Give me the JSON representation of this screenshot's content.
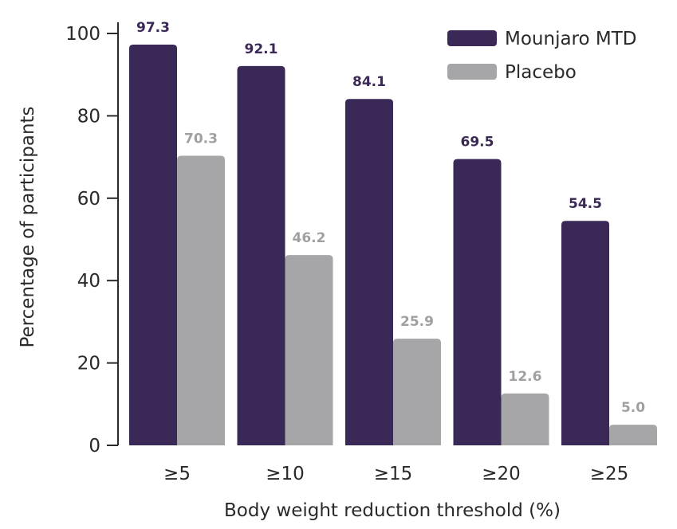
{
  "chart_data": {
    "type": "bar",
    "title": "",
    "xlabel": "Body weight reduction threshold (%)",
    "ylabel": "Percentage of participants",
    "categories": [
      "≥5",
      "≥10",
      "≥15",
      "≥20",
      "≥25"
    ],
    "ylim": [
      0,
      100
    ],
    "yticks": [
      "0",
      "20",
      "40",
      "60",
      "80",
      "100"
    ],
    "grid": false,
    "legend": "top-right",
    "series": [
      {
        "name": "Mounjaro MTD",
        "color": "#3a2856",
        "label_color": "#3a2856",
        "values": [
          97.3,
          92.1,
          84.1,
          69.5,
          54.5
        ],
        "labels": [
          "97.3",
          "92.1",
          "84.1",
          "69.5",
          "54.5"
        ]
      },
      {
        "name": "Placebo",
        "color": "#a6a6a8",
        "label_color": "#a0a0a2",
        "values": [
          70.3,
          46.2,
          25.9,
          12.6,
          5.0
        ],
        "labels": [
          "70.3",
          "46.2",
          "25.9",
          "12.6",
          "5.0"
        ]
      }
    ]
  }
}
